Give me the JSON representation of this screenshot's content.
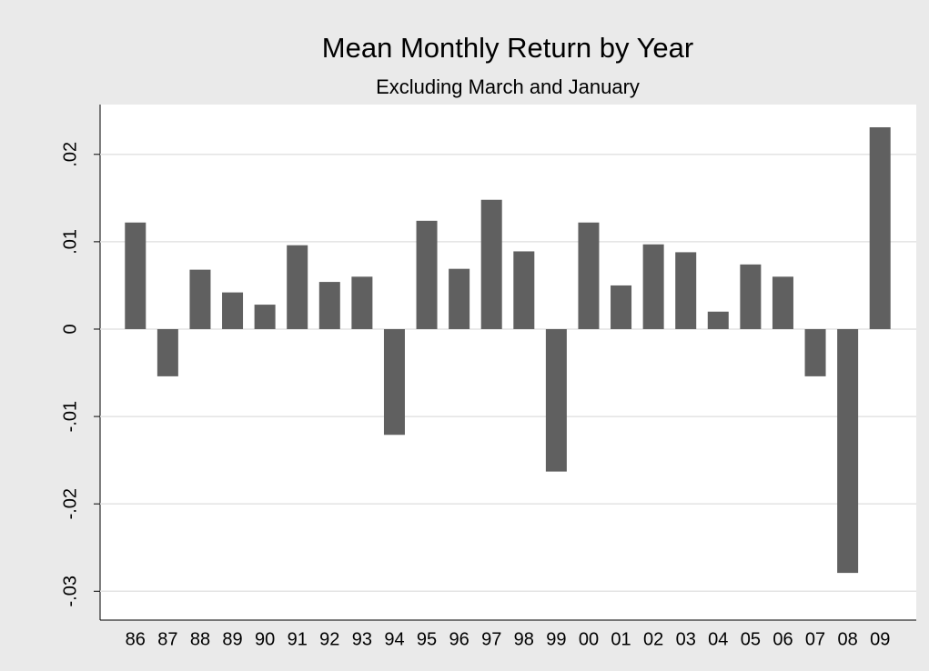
{
  "chart_data": {
    "type": "bar",
    "title": "Mean Monthly Return by Year",
    "subtitle": "Excluding March and January",
    "categories": [
      "86",
      "87",
      "88",
      "89",
      "90",
      "91",
      "92",
      "93",
      "94",
      "95",
      "96",
      "97",
      "98",
      "99",
      "00",
      "01",
      "02",
      "03",
      "04",
      "05",
      "06",
      "07",
      "08",
      "09"
    ],
    "values": [
      0.0122,
      -0.0054,
      0.0068,
      0.0042,
      0.0028,
      0.0096,
      0.0054,
      0.006,
      -0.0121,
      0.0124,
      0.0069,
      0.0148,
      0.0089,
      -0.0163,
      0.0122,
      0.005,
      0.0097,
      0.0088,
      0.002,
      0.0074,
      0.006,
      -0.0054,
      -0.0279,
      0.0231
    ],
    "color": "#606060",
    "ylim": [
      -0.0333,
      0.0257
    ],
    "yticks": [
      {
        "value": -0.03,
        "label": "-.03"
      },
      {
        "value": -0.02,
        "label": "-.02"
      },
      {
        "value": -0.01,
        "label": "-.01"
      },
      0,
      {
        "value": 0.01,
        "label": ".01"
      },
      {
        "value": 0.02,
        "label": ".02"
      }
    ],
    "grid": true
  }
}
